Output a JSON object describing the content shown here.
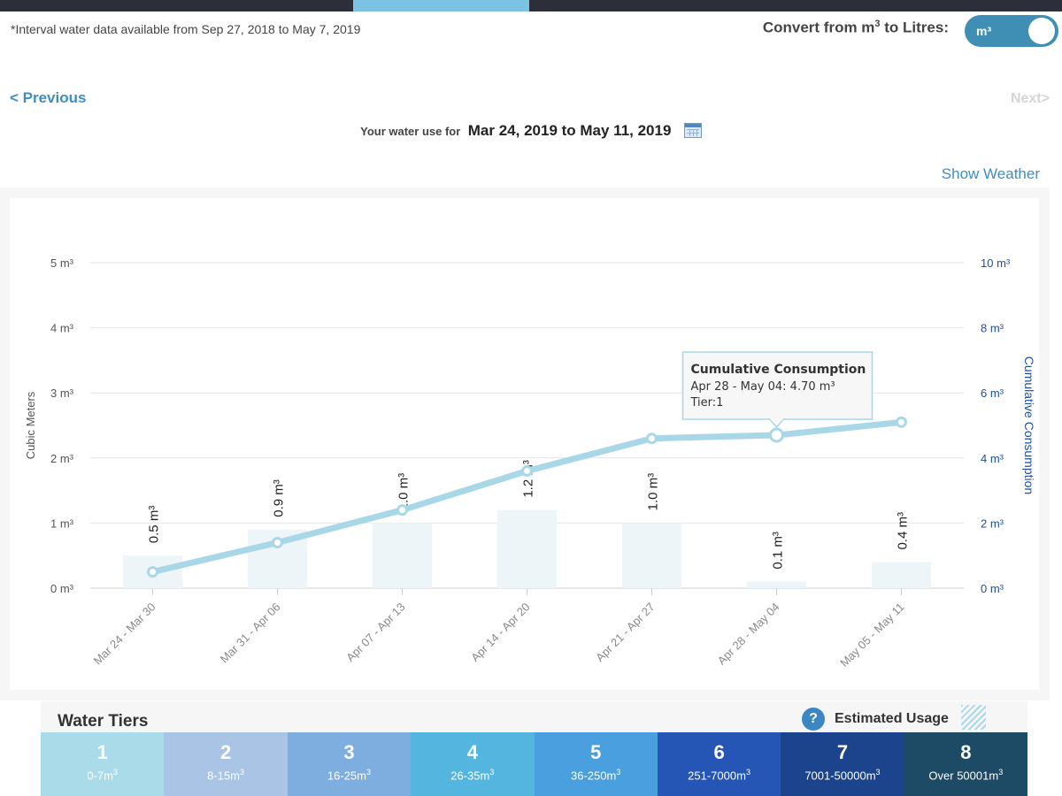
{
  "header": {
    "interval_note": "*Interval water data available from Sep 27, 2018 to May 7, 2019",
    "convert_label": "Convert from m",
    "convert_label_sup": "3",
    "convert_label_suffix": " to Litres:",
    "toggle_value": "m³"
  },
  "nav": {
    "previous": "< Previous",
    "next": "Next>"
  },
  "range": {
    "prefix": "Your water use for",
    "value": "Mar 24, 2019 to May 11, 2019"
  },
  "show_weather": "Show Weather",
  "colors": {
    "bar_fill": "#eef5f9",
    "line": "#a8d8e8",
    "right_axis": "#1f4e9a",
    "grid": "#e6e6e6"
  },
  "chart_data": {
    "type": "bar",
    "categories": [
      "Mar 24 - Mar 30",
      "Mar 31 - Apr 06",
      "Apr 07 - Apr 13",
      "Apr 14 - Apr 20",
      "Apr 21 - Apr 27",
      "Apr 28 - May 04",
      "May 05 - May 11"
    ],
    "series": [
      {
        "type": "bar",
        "axis": "left",
        "values": [
          0.5,
          0.9,
          1.0,
          1.2,
          1.0,
          0.1,
          0.4
        ],
        "labels": [
          "0.5 m³",
          "0.9 m³",
          "1.0 m³",
          "1.2 m³",
          "1.0 m³",
          "0.1 m³",
          "0.4 m³"
        ]
      },
      {
        "type": "line",
        "axis": "right",
        "name": "Cumulative Consumption",
        "values": [
          0.5,
          1.4,
          2.4,
          3.6,
          4.6,
          4.7,
          5.1
        ]
      }
    ],
    "ylabel": "Cubic Meters",
    "ylabel_right": "Cumulative Consumption",
    "ylim": [
      0,
      5
    ],
    "ylim_right": [
      0,
      10
    ],
    "yticks": [
      "0 m³",
      "1 m³",
      "2 m³",
      "3 m³",
      "4 m³",
      "5 m³"
    ],
    "yticks_right": [
      "0 m³",
      "2 m³",
      "4 m³",
      "6 m³",
      "8 m³",
      "10 m³"
    ],
    "grid": true,
    "tooltip": {
      "index": 5,
      "title": "Cumulative Consumption",
      "line1": "Apr 28 - May 04: 4.70 m³",
      "line2": "Tier:1"
    }
  },
  "tiers": {
    "title": "Water Tiers",
    "help_icon": "?",
    "estimated_label": "Estimated Usage",
    "items": [
      {
        "num": "1",
        "range": "0-7m",
        "sup": "3",
        "color": "#a9dbe8"
      },
      {
        "num": "2",
        "range": "8-15m",
        "sup": "3",
        "color": "#a9c4e4"
      },
      {
        "num": "3",
        "range": "16-25m",
        "sup": "3",
        "color": "#7eaee0"
      },
      {
        "num": "4",
        "range": "26-35m",
        "sup": "3",
        "color": "#54b5df"
      },
      {
        "num": "5",
        "range": "36-250m",
        "sup": "3",
        "color": "#4a9fdf"
      },
      {
        "num": "6",
        "range": "251-7000m",
        "sup": "3",
        "color": "#2556b5"
      },
      {
        "num": "7",
        "range": "7001-50000m",
        "sup": "3",
        "color": "#1c448c"
      },
      {
        "num": "8",
        "range": "Over 50001m",
        "sup": "3",
        "color": "#1d4a64"
      }
    ]
  }
}
